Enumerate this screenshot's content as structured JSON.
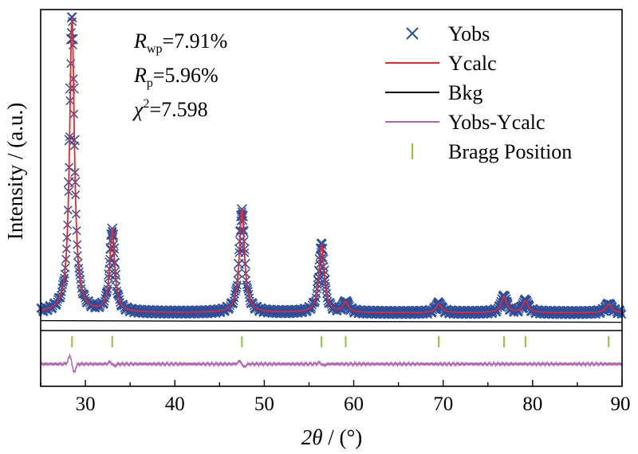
{
  "chart_data": {
    "type": "scatter",
    "xlabel": "2θ / (°)",
    "xlabel_parts": {
      "symbol": "2θ",
      "unit": " / (°)"
    },
    "ylabel": "Intensity / (a.u.)",
    "xlim": [
      25,
      90
    ],
    "ylim": [
      0,
      1.0
    ],
    "x_ticks": [
      30,
      40,
      50,
      60,
      70,
      80,
      90
    ],
    "x_tick_labels": [
      "30",
      "40",
      "50",
      "60",
      "70",
      "80",
      "90"
    ],
    "grid": false,
    "legend_position": "top-right",
    "annotations": [
      {
        "sym": "R",
        "sub": "wp",
        "sup": "",
        "value": "=7.91%"
      },
      {
        "sym": "R",
        "sub": "p",
        "sup": "",
        "value": "=5.96%"
      },
      {
        "sym": "χ",
        "sub": "",
        "sup": "2",
        "value": "=7.598"
      }
    ],
    "baseline": 0.02,
    "peaks": [
      {
        "x": 28.5,
        "height": 1.0,
        "width": 0.32
      },
      {
        "x": 33.0,
        "height": 0.28,
        "width": 0.32
      },
      {
        "x": 47.5,
        "height": 0.35,
        "width": 0.34
      },
      {
        "x": 56.4,
        "height": 0.23,
        "width": 0.34
      },
      {
        "x": 59.1,
        "height": 0.035,
        "width": 0.34
      },
      {
        "x": 69.5,
        "height": 0.03,
        "width": 0.36
      },
      {
        "x": 76.8,
        "height": 0.055,
        "width": 0.36
      },
      {
        "x": 79.2,
        "height": 0.04,
        "width": 0.36
      },
      {
        "x": 88.5,
        "height": 0.03,
        "width": 0.38
      }
    ],
    "bragg_positions": [
      28.5,
      33.0,
      47.5,
      56.4,
      59.1,
      69.5,
      76.8,
      79.2,
      88.5
    ],
    "series": [
      {
        "name": "Yobs",
        "color": "#2b4f9e",
        "marker": "x"
      },
      {
        "name": "Ycalc",
        "color": "#e8262d",
        "marker": "line"
      },
      {
        "name": "Bkg",
        "color": "#000000",
        "marker": "line"
      },
      {
        "name": "Yobs-Ycalc",
        "color": "#b562b0",
        "marker": "line"
      },
      {
        "name": "Bragg Position",
        "color": "#8cc63f",
        "marker": "tick"
      }
    ]
  }
}
